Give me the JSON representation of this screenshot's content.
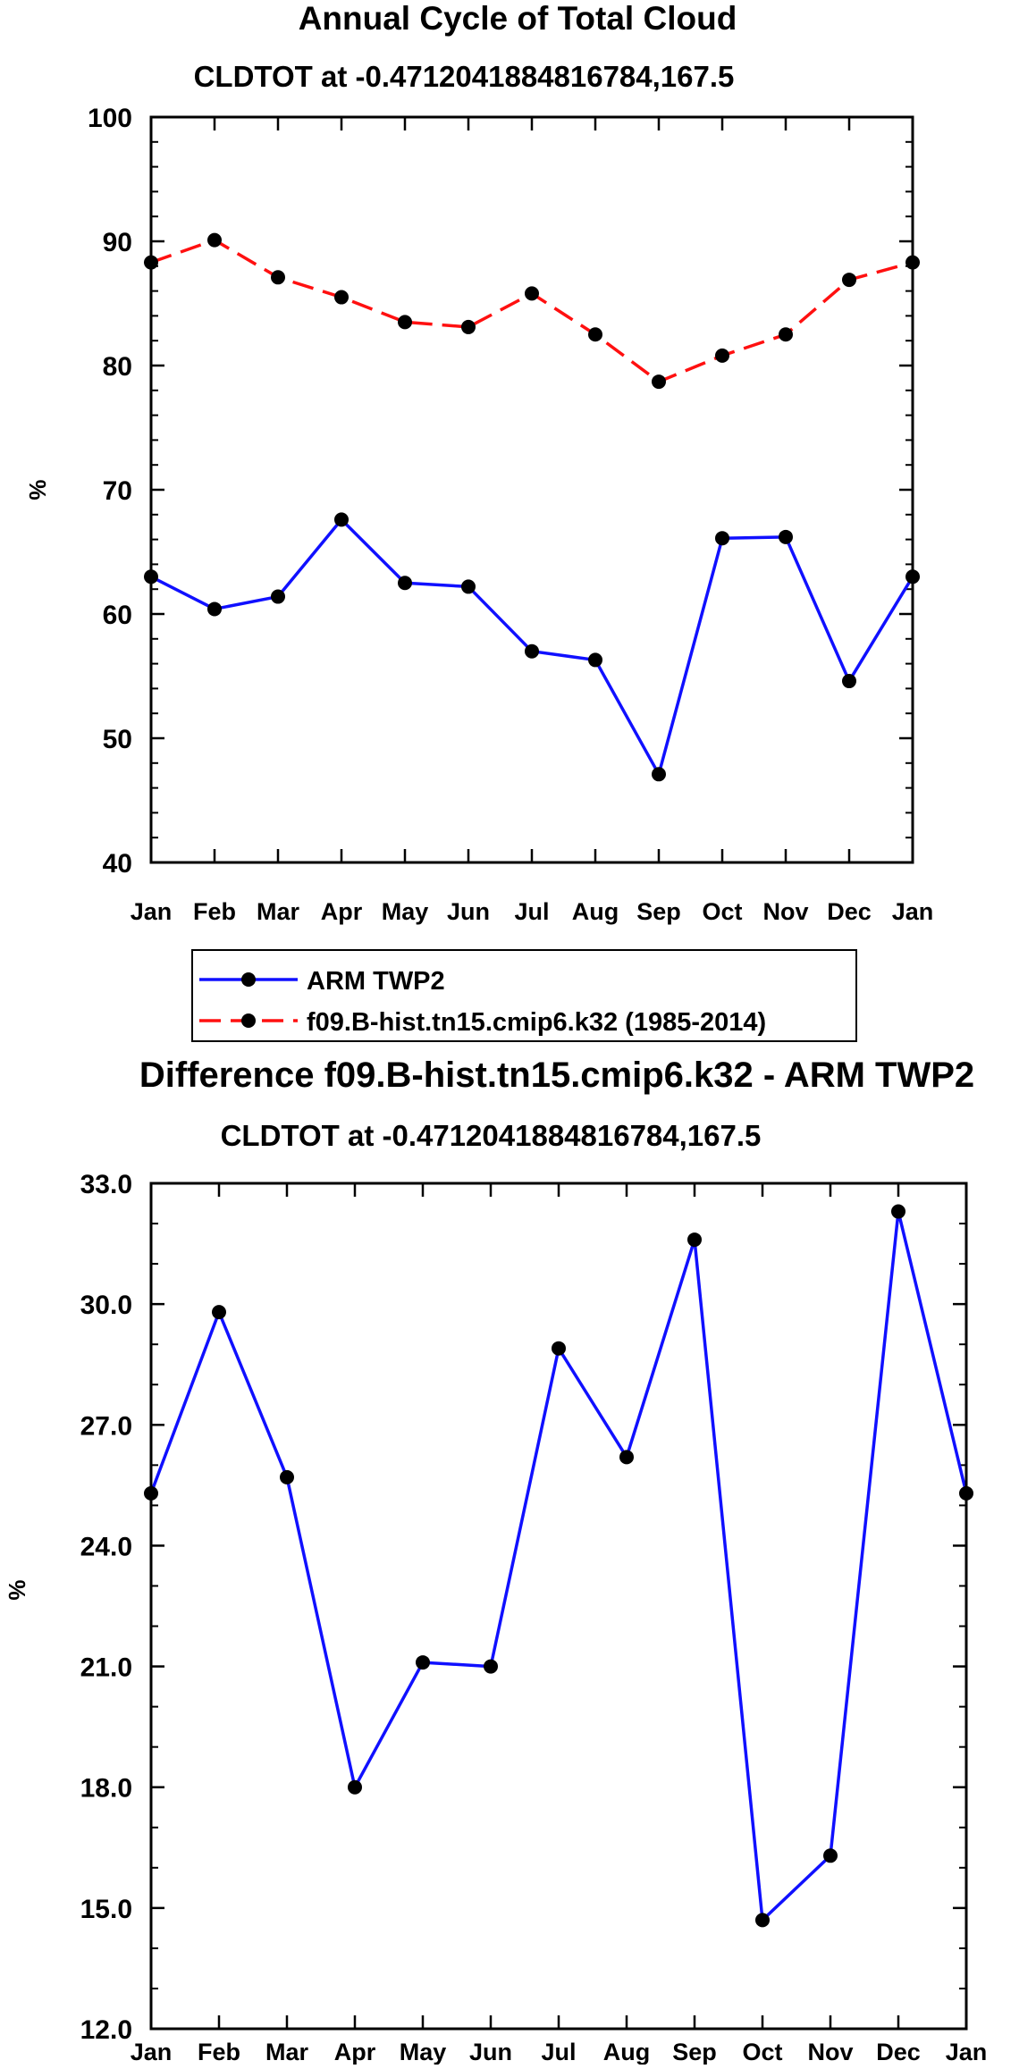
{
  "chart_data": [
    {
      "type": "line",
      "title": "Annual Cycle of Total Cloud",
      "subtitle": "CLDTOT at -0.4712041884816784,167.5",
      "xlabel": "",
      "ylabel": "%",
      "categories": [
        "Jan",
        "Feb",
        "Mar",
        "Apr",
        "May",
        "Jun",
        "Jul",
        "Aug",
        "Sep",
        "Oct",
        "Nov",
        "Dec",
        "Jan"
      ],
      "ylim": [
        40,
        100
      ],
      "yticks": [
        "40",
        "50",
        "60",
        "70",
        "80",
        "90",
        "100"
      ],
      "series": [
        {
          "name": "ARM TWP2",
          "color": "#1010ff",
          "dashed": false,
          "values": [
            63.0,
            60.4,
            61.4,
            67.6,
            62.5,
            62.2,
            57.0,
            56.3,
            47.1,
            66.1,
            66.2,
            54.6,
            63.0
          ]
        },
        {
          "name": "f09.B-hist.tn15.cmip6.k32 (1985-2014)",
          "color": "#ff1010",
          "dashed": true,
          "values": [
            88.3,
            90.1,
            87.1,
            85.5,
            83.5,
            83.1,
            85.8,
            82.5,
            78.7,
            80.8,
            82.5,
            86.9,
            88.3
          ]
        }
      ],
      "legend": {
        "position": "below",
        "entries": [
          "ARM TWP2",
          "f09.B-hist.tn15.cmip6.k32 (1985-2014)"
        ]
      }
    },
    {
      "type": "line",
      "title": "Difference f09.B-hist.tn15.cmip6.k32 - ARM TWP2",
      "subtitle": "CLDTOT at -0.4712041884816784,167.5",
      "xlabel": "",
      "ylabel": "%",
      "categories": [
        "Jan",
        "Feb",
        "Mar",
        "Apr",
        "May",
        "Jun",
        "Jul",
        "Aug",
        "Sep",
        "Oct",
        "Nov",
        "Dec",
        "Jan"
      ],
      "ylim": [
        12.0,
        33.0
      ],
      "yticks": [
        "12.0",
        "15.0",
        "18.0",
        "21.0",
        "24.0",
        "27.0",
        "30.0",
        "33.0"
      ],
      "series": [
        {
          "name": "Difference",
          "color": "#1010ff",
          "dashed": false,
          "values": [
            25.3,
            29.8,
            25.7,
            18.0,
            21.1,
            21.0,
            28.9,
            26.2,
            31.6,
            14.7,
            16.3,
            32.3,
            25.3
          ]
        }
      ]
    }
  ]
}
